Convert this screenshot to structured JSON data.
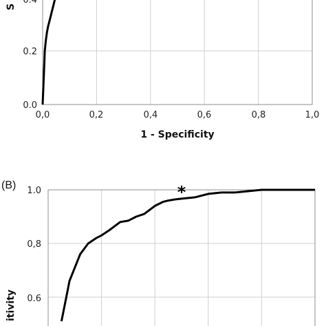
{
  "chart_data": [
    {
      "type": "line",
      "panel_label": "",
      "title": "",
      "xlabel": "1 - Specificity",
      "ylabel": "S",
      "xlim": [
        0,
        1
      ],
      "ylim": [
        0,
        1
      ],
      "x_ticks": [
        "0,0",
        "0,2",
        "0,4",
        "0,6",
        "0,8",
        "1,0"
      ],
      "y_ticks": [
        "0.0",
        "0.2",
        "0.4"
      ],
      "grid": true,
      "series": [
        {
          "x": [
            0.0,
            0.002,
            0.004,
            0.006,
            0.008,
            0.012,
            0.016,
            0.02,
            0.025,
            0.03,
            0.035,
            0.04,
            0.045,
            0.05
          ],
          "y": [
            0.0,
            0.05,
            0.1,
            0.15,
            0.2,
            0.24,
            0.27,
            0.29,
            0.31,
            0.33,
            0.35,
            0.37,
            0.39,
            0.41
          ]
        }
      ]
    },
    {
      "type": "line",
      "panel_label": "(B)",
      "title": "",
      "xlabel": "",
      "ylabel": "itivity",
      "xlim": [
        0,
        1
      ],
      "ylim": [
        0.5,
        1.0
      ],
      "y_ticks": [
        "1.0",
        "0,8",
        "0.6"
      ],
      "grid": true,
      "annotation": "*",
      "annotation_x": 0.5,
      "annotation_y": 0.965,
      "series": [
        {
          "x": [
            0.05,
            0.06,
            0.07,
            0.08,
            0.1,
            0.12,
            0.15,
            0.18,
            0.2,
            0.23,
            0.27,
            0.3,
            0.33,
            0.36,
            0.4,
            0.43,
            0.45,
            0.48,
            0.5,
            0.55,
            0.6,
            0.65,
            0.7,
            0.8,
            0.9,
            1.0
          ],
          "y": [
            0.51,
            0.56,
            0.61,
            0.66,
            0.71,
            0.76,
            0.8,
            0.82,
            0.83,
            0.85,
            0.88,
            0.885,
            0.9,
            0.91,
            0.94,
            0.955,
            0.96,
            0.965,
            0.967,
            0.972,
            0.985,
            0.99,
            0.99,
            1.0,
            1.0,
            1.0
          ]
        }
      ]
    }
  ]
}
